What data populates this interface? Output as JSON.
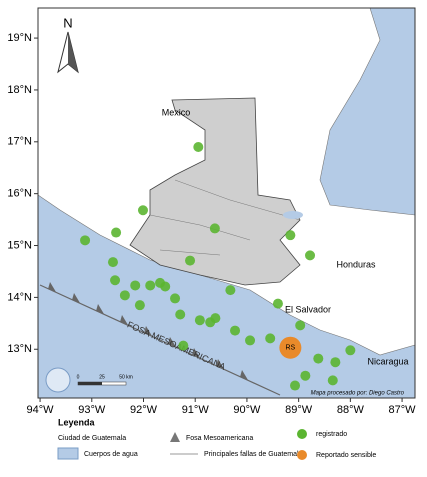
{
  "map": {
    "xlim": [
      -94.04,
      -86.75
    ],
    "ylim": [
      12.06,
      19.58
    ],
    "xticks": [
      {
        "value": -94,
        "label": "94°W"
      },
      {
        "value": -93,
        "label": "93°W"
      },
      {
        "value": -92,
        "label": "92°W"
      },
      {
        "value": -91,
        "label": "91°W"
      },
      {
        "value": -90,
        "label": "90°W"
      },
      {
        "value": -89,
        "label": "89°W"
      },
      {
        "value": -88,
        "label": "88°W"
      },
      {
        "value": -87,
        "label": "87°W"
      }
    ],
    "yticks": [
      {
        "value": 13,
        "label": "13°N"
      },
      {
        "value": 14,
        "label": "14°N"
      },
      {
        "value": 15,
        "label": "15°N"
      },
      {
        "value": 16,
        "label": "16°N"
      },
      {
        "value": 17,
        "label": "17°N"
      },
      {
        "value": 18,
        "label": "18°N"
      },
      {
        "value": 19,
        "label": "19°N"
      }
    ],
    "labels": {
      "north": "N",
      "mexico": "Mexico",
      "honduras": "Honduras",
      "el_salvador": "El Salvador",
      "nicaragua": "Nicaragua",
      "trench": "FOSA MESOAMERICANA",
      "credit": "Mapa procesado por: Diego Castro",
      "felt_code": "RS"
    },
    "scale": [
      "0",
      "25",
      "50 km"
    ],
    "events": [
      {
        "lon": -90.94,
        "lat": 16.9
      },
      {
        "lon": -92.01,
        "lat": 15.68
      },
      {
        "lon": -93.13,
        "lat": 15.1
      },
      {
        "lon": -92.53,
        "lat": 15.25
      },
      {
        "lon": -92.59,
        "lat": 14.68
      },
      {
        "lon": -92.55,
        "lat": 14.33
      },
      {
        "lon": -92.16,
        "lat": 14.23
      },
      {
        "lon": -91.87,
        "lat": 14.23
      },
      {
        "lon": -91.58,
        "lat": 14.21
      },
      {
        "lon": -91.39,
        "lat": 13.98
      },
      {
        "lon": -92.07,
        "lat": 13.85
      },
      {
        "lon": -92.36,
        "lat": 14.04
      },
      {
        "lon": -91.29,
        "lat": 13.67
      },
      {
        "lon": -90.91,
        "lat": 13.56
      },
      {
        "lon": -90.71,
        "lat": 13.52
      },
      {
        "lon": -90.61,
        "lat": 13.6
      },
      {
        "lon": -90.32,
        "lat": 14.14
      },
      {
        "lon": -90.23,
        "lat": 13.36
      },
      {
        "lon": -89.94,
        "lat": 13.17
      },
      {
        "lon": -89.55,
        "lat": 13.21
      },
      {
        "lon": -91.23,
        "lat": 13.07
      },
      {
        "lon": -90.62,
        "lat": 15.33
      },
      {
        "lon": -91.1,
        "lat": 14.71
      },
      {
        "lon": -89.16,
        "lat": 15.2
      },
      {
        "lon": -88.78,
        "lat": 14.81
      },
      {
        "lon": -89.4,
        "lat": 13.88
      },
      {
        "lon": -88.97,
        "lat": 13.46
      },
      {
        "lon": -88.62,
        "lat": 12.82
      },
      {
        "lon": -88.29,
        "lat": 12.75
      },
      {
        "lon": -88.0,
        "lat": 12.98
      },
      {
        "lon": -88.87,
        "lat": 12.49
      },
      {
        "lon": -89.07,
        "lat": 12.3
      },
      {
        "lon": -88.34,
        "lat": 12.4
      },
      {
        "lon": -91.68,
        "lat": 14.28
      }
    ],
    "felt_events": [
      {
        "lon": -89.16,
        "lat": 13.03
      }
    ]
  },
  "legend": {
    "title": "Leyenda",
    "city": "Ciudad de Guatemala",
    "water": "Cuerpos de agua",
    "trench": "Fosa Mesoamericana",
    "faults": "Principales fallas de Guatemala",
    "recorded": "registrado",
    "felt": "Reportado sensible"
  }
}
